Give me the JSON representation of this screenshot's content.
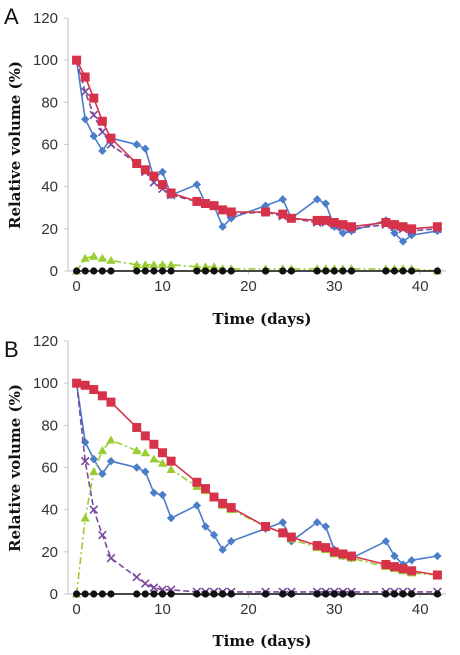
{
  "chart_data": [
    {
      "panel": "A",
      "type": "line",
      "xlabel": "Time (days)",
      "ylabel": "Relative volume (%)",
      "xlim": [
        -1,
        43
      ],
      "ylim": [
        0,
        120
      ],
      "xticks": [
        0,
        10,
        20,
        30,
        40
      ],
      "yticks": [
        0,
        20,
        40,
        60,
        80,
        100,
        120
      ],
      "grid": false,
      "series": [
        {
          "color": "#4a7ec9",
          "marker": "diamond",
          "dash": "solid",
          "x": [
            0,
            1,
            2,
            3,
            4,
            7,
            8,
            9,
            10,
            11,
            14,
            15,
            16,
            17,
            18,
            22,
            24,
            25,
            28,
            29,
            30,
            31,
            32,
            36,
            37,
            38,
            39,
            42
          ],
          "y": [
            100,
            72,
            64,
            57,
            63,
            60,
            58,
            44,
            47,
            36,
            41,
            32,
            31,
            21,
            25,
            31,
            34,
            25,
            34,
            32,
            21,
            18,
            19,
            24,
            18,
            14,
            17,
            19
          ]
        },
        {
          "color": "#7b4a9e",
          "marker": "x",
          "dash": "dashed",
          "x": [
            0,
            1,
            2,
            3,
            4,
            7,
            8,
            9,
            10,
            11,
            14,
            15,
            16,
            17,
            18,
            22,
            24,
            25,
            28,
            29,
            30,
            31,
            32,
            36,
            37,
            38,
            39,
            42
          ],
          "y": [
            100,
            85,
            74,
            66,
            60,
            51,
            47,
            42,
            39,
            36,
            33,
            32,
            31,
            29,
            27,
            28,
            26,
            25,
            23,
            23,
            22,
            21,
            20,
            22,
            21,
            20,
            19,
            20
          ]
        },
        {
          "color": "#9acd32",
          "marker": "triangle",
          "dash": "dashdot",
          "x": [
            0,
            1,
            2,
            3,
            4,
            7,
            8,
            9,
            10,
            11,
            14,
            15,
            16,
            17,
            18,
            22,
            24,
            25,
            28,
            29,
            30,
            31,
            32,
            36,
            37,
            38,
            39,
            42
          ],
          "y": [
            0,
            6,
            7,
            6,
            5,
            3,
            3,
            3,
            3,
            3,
            2,
            2,
            2,
            1,
            1,
            1,
            1,
            1,
            1,
            1,
            1,
            1,
            1,
            1,
            1,
            1,
            1,
            0
          ]
        },
        {
          "color": "#d6334a",
          "marker": "square",
          "dash": "solid",
          "x": [
            0,
            1,
            2,
            3,
            4,
            7,
            8,
            9,
            10,
            11,
            14,
            15,
            16,
            17,
            18,
            22,
            24,
            25,
            28,
            29,
            30,
            31,
            32,
            36,
            37,
            38,
            39,
            42
          ],
          "y": [
            100,
            92,
            82,
            71,
            63,
            51,
            48,
            45,
            41,
            37,
            33,
            32,
            31,
            29,
            28,
            28,
            27,
            25,
            24,
            24,
            23,
            22,
            21,
            23,
            22,
            21,
            20,
            21
          ]
        },
        {
          "color": "#111111",
          "marker": "circle",
          "dash": "solid",
          "x": [
            0,
            1,
            2,
            3,
            4,
            7,
            8,
            9,
            10,
            11,
            14,
            15,
            16,
            17,
            18,
            22,
            24,
            25,
            28,
            29,
            30,
            31,
            32,
            36,
            37,
            38,
            39,
            42
          ],
          "y": [
            0,
            0,
            0,
            0,
            0,
            0,
            0,
            0,
            0,
            0,
            0,
            0,
            0,
            0,
            0,
            0,
            0,
            0,
            0,
            0,
            0,
            0,
            0,
            0,
            0,
            0,
            0,
            0
          ]
        }
      ]
    },
    {
      "panel": "B",
      "type": "line",
      "xlabel": "Time (days)",
      "ylabel": "Relative volume (%)",
      "xlim": [
        -1,
        43
      ],
      "ylim": [
        0,
        120
      ],
      "xticks": [
        0,
        10,
        20,
        30,
        40
      ],
      "yticks": [
        0,
        20,
        40,
        60,
        80,
        100,
        120
      ],
      "grid": false,
      "series": [
        {
          "color": "#4a7ec9",
          "marker": "diamond",
          "dash": "solid",
          "x": [
            0,
            1,
            2,
            3,
            4,
            7,
            8,
            9,
            10,
            11,
            14,
            15,
            16,
            17,
            18,
            22,
            24,
            25,
            28,
            29,
            30,
            31,
            32,
            36,
            37,
            38,
            39,
            42
          ],
          "y": [
            100,
            72,
            64,
            57,
            63,
            60,
            58,
            48,
            47,
            36,
            42,
            32,
            28,
            21,
            25,
            31,
            34,
            25,
            34,
            32,
            21,
            18,
            17,
            25,
            18,
            14,
            16,
            18
          ]
        },
        {
          "color": "#7b4a9e",
          "marker": "x",
          "dash": "dashed",
          "x": [
            0,
            1,
            2,
            3,
            4,
            7,
            8,
            9,
            10,
            11,
            14,
            15,
            16,
            17,
            18,
            22,
            24,
            25,
            28,
            29,
            30,
            31,
            32,
            36,
            37,
            38,
            39,
            42
          ],
          "y": [
            100,
            63,
            40,
            28,
            17,
            8,
            5,
            3,
            2,
            2,
            1,
            1,
            1,
            1,
            1,
            1,
            1,
            1,
            1,
            1,
            1,
            1,
            1,
            1,
            1,
            1,
            1,
            1
          ]
        },
        {
          "color": "#9acd32",
          "marker": "triangle",
          "dash": "dashdot",
          "x": [
            0,
            1,
            2,
            3,
            4,
            7,
            8,
            9,
            10,
            11,
            14,
            15,
            16,
            17,
            18,
            22,
            24,
            25,
            28,
            29,
            30,
            31,
            32,
            36,
            37,
            38,
            39,
            42
          ],
          "y": [
            0,
            36,
            58,
            68,
            73,
            68,
            67,
            64,
            62,
            59,
            51,
            49,
            46,
            42,
            40,
            32,
            29,
            26,
            22,
            21,
            19,
            18,
            17,
            13,
            12,
            11,
            10,
            9
          ]
        },
        {
          "color": "#d6334a",
          "marker": "square",
          "dash": "solid",
          "x": [
            0,
            1,
            2,
            3,
            4,
            7,
            8,
            9,
            10,
            11,
            14,
            15,
            16,
            17,
            18,
            22,
            24,
            25,
            28,
            29,
            30,
            31,
            32,
            36,
            37,
            38,
            39,
            42
          ],
          "y": [
            100,
            99,
            97,
            94,
            91,
            79,
            75,
            71,
            67,
            63,
            53,
            50,
            46,
            43,
            41,
            32,
            29,
            27,
            23,
            22,
            20,
            19,
            18,
            14,
            13,
            12,
            11,
            9
          ]
        },
        {
          "color": "#111111",
          "marker": "circle",
          "dash": "solid",
          "x": [
            0,
            1,
            2,
            3,
            4,
            7,
            8,
            9,
            10,
            11,
            14,
            15,
            16,
            17,
            18,
            22,
            24,
            25,
            28,
            29,
            30,
            31,
            32,
            36,
            37,
            38,
            39,
            42
          ],
          "y": [
            0,
            0,
            0,
            0,
            0,
            0,
            0,
            0,
            0,
            0,
            0,
            0,
            0,
            0,
            0,
            0,
            0,
            0,
            0,
            0,
            0,
            0,
            0,
            0,
            0,
            0,
            0,
            0
          ]
        }
      ]
    }
  ]
}
